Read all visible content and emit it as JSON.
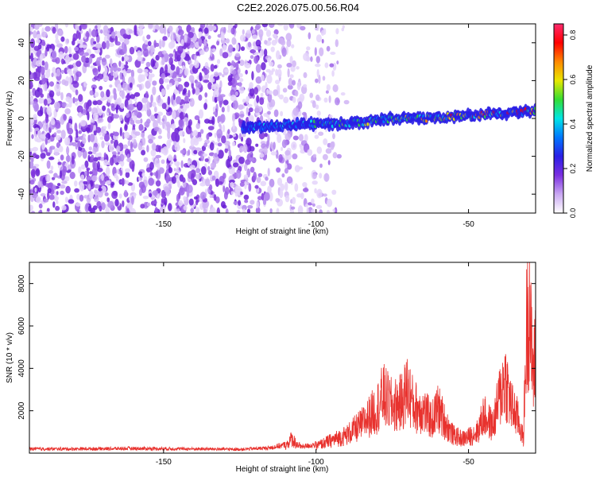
{
  "title": "C2E2.2026.075.00.56.R04",
  "chart_data": [
    {
      "type": "heatmap",
      "xlabel": "Height of straight line (km)",
      "ylabel": "Frequency (Hz)",
      "xlim": [
        -194,
        -28
      ],
      "ylim": [
        -50,
        50
      ],
      "x_ticks": [
        -150,
        -100,
        -50
      ],
      "y_ticks": [
        -40,
        -20,
        0,
        20,
        40
      ],
      "colorbar": {
        "label": "Normalized spectral amplitude",
        "range": [
          0,
          0.85
        ],
        "ticks": [
          0.0,
          0.2,
          0.4,
          0.6,
          0.8
        ],
        "colors": [
          "#ffffff",
          "#c9a7f2",
          "#7b2fe0",
          "#2a1ee6",
          "#0077ff",
          "#00e5e5",
          "#33dd33",
          "#e8e800",
          "#ff8800",
          "#ff0000",
          "#ff2a6e"
        ]
      },
      "signal_band": {
        "x": [
          -124,
          -115,
          -105,
          -95,
          -85,
          -75,
          -65,
          -55,
          -45,
          -35,
          -28
        ],
        "freq_hz": [
          -5,
          -4,
          -3,
          -3,
          -2,
          0,
          0,
          1,
          2,
          3,
          4
        ]
      },
      "noise_extent_x": [
        -194,
        -90
      ]
    },
    {
      "type": "line",
      "xlabel": "Height of straight line (km)",
      "ylabel": "SNR (10 * v/v)",
      "xlim": [
        -194,
        -28
      ],
      "ylim": [
        0,
        9000
      ],
      "x_ticks": [
        -150,
        -100,
        -50
      ],
      "y_ticks": [
        2000,
        4000,
        6000,
        8000
      ],
      "series": [
        {
          "color": "#e8322e",
          "x": [
            -194,
            -180,
            -160,
            -140,
            -125,
            -115,
            -110,
            -108,
            -105,
            -100,
            -95,
            -90,
            -85,
            -80,
            -78,
            -75,
            -72,
            -70,
            -68,
            -65,
            -62,
            -60,
            -57,
            -55,
            -52,
            -50,
            -47,
            -45,
            -42,
            -40,
            -38,
            -36,
            -34,
            -32,
            -31,
            -30,
            -29.5,
            -29,
            -28.5,
            -28
          ],
          "y": [
            200,
            200,
            220,
            200,
            180,
            250,
            400,
            800,
            300,
            400,
            700,
            1000,
            1600,
            2500,
            3200,
            2600,
            2800,
            3600,
            2600,
            2400,
            1800,
            2500,
            1500,
            1000,
            800,
            900,
            1200,
            2100,
            1500,
            3000,
            4200,
            2600,
            2000,
            800,
            6600,
            9000,
            6000,
            4800,
            4500,
            6200
          ]
        }
      ]
    }
  ]
}
